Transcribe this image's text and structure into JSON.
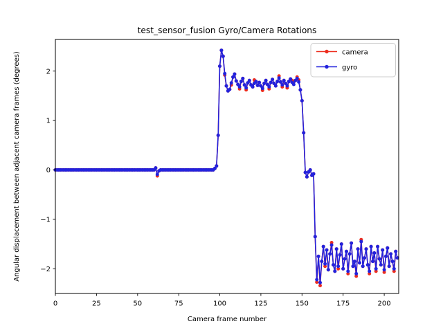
{
  "window": {
    "background_color": "#ffffff"
  },
  "chart_data": {
    "type": "line",
    "title": "test_sensor_fusion Gyro/Camera Rotations",
    "xlabel": "Camera frame number",
    "ylabel": "Angular displacement between adjacent camera frames (degrees)",
    "xlim": [
      0,
      208.8
    ],
    "ylim": [
      -2.5,
      2.64
    ],
    "xticks": [
      0,
      25,
      50,
      75,
      100,
      125,
      150,
      175,
      200
    ],
    "xtick_labels": [
      "0",
      "25",
      "50",
      "75",
      "100",
      "125",
      "150",
      "175",
      "200"
    ],
    "yticks": [
      -2,
      -1,
      0,
      1,
      2
    ],
    "ytick_labels": [
      "−2",
      "−1",
      "0",
      "1",
      "2"
    ],
    "grid": false,
    "legend": {
      "position": "upper right",
      "entries": [
        "camera",
        "gyro"
      ]
    },
    "x_start": 0,
    "x_step": 1,
    "series": [
      {
        "name": "camera",
        "color": "#ed2d1e",
        "marker": "circle",
        "values": [
          0,
          0,
          0,
          0,
          0,
          0,
          0,
          0,
          0,
          0,
          0,
          0,
          0,
          0,
          0,
          0,
          0,
          0,
          0,
          0,
          0,
          0,
          0,
          0,
          0,
          0,
          0,
          0,
          0,
          0,
          0,
          0,
          0,
          0,
          0,
          0,
          0,
          0,
          0,
          0,
          0,
          0,
          0,
          0,
          0,
          0,
          0,
          0,
          0,
          0,
          0,
          0,
          0,
          0,
          0,
          0,
          0,
          0,
          0,
          0,
          0,
          0.04,
          -0.12,
          -0.02,
          0,
          0,
          0,
          0,
          0,
          0,
          0,
          0,
          0,
          0,
          0,
          0,
          0,
          0,
          0,
          0,
          0,
          0,
          0,
          0,
          0,
          0,
          0,
          0,
          0,
          0,
          0,
          0,
          0,
          0,
          0,
          0,
          0,
          0.03,
          0.08,
          0.7,
          2.1,
          2.42,
          2.3,
          1.92,
          1.7,
          1.6,
          1.63,
          1.72,
          1.88,
          1.94,
          1.8,
          1.73,
          1.64,
          1.79,
          1.85,
          1.72,
          1.62,
          1.76,
          1.81,
          1.72,
          1.68,
          1.82,
          1.79,
          1.71,
          1.77,
          1.7,
          1.61,
          1.75,
          1.81,
          1.73,
          1.64,
          1.77,
          1.83,
          1.75,
          1.7,
          1.79,
          1.9,
          1.78,
          1.68,
          1.81,
          1.75,
          1.66,
          1.79,
          1.84,
          1.81,
          1.78,
          1.81,
          1.88,
          1.82,
          1.62,
          1.4,
          0.75,
          -0.05,
          -0.14,
          -0.04,
          0,
          -0.11,
          -0.08,
          -1.35,
          -2.27,
          -1.75,
          -2.34,
          -1.85,
          -1.55,
          -1.95,
          -1.62,
          -2.02,
          -1.7,
          -1.47,
          -1.92,
          -2.05,
          -1.6,
          -2.0,
          -1.72,
          -1.5,
          -2.0,
          -1.8,
          -1.65,
          -2.1,
          -1.7,
          -1.48,
          -1.95,
          -1.85,
          -2.15,
          -1.6,
          -1.88,
          -1.41,
          -1.95,
          -1.78,
          -1.6,
          -1.92,
          -2.1,
          -1.55,
          -1.85,
          -1.68,
          -2.05,
          -1.55,
          -1.8,
          -1.92,
          -1.62,
          -2.07,
          -1.75,
          -1.58,
          -1.95,
          -1.7,
          -1.85,
          -2.05,
          -1.65,
          -1.78
        ]
      },
      {
        "name": "gyro",
        "color": "#2222dd",
        "marker": "circle",
        "values": [
          0,
          0,
          0,
          0,
          0,
          0,
          0,
          0,
          0,
          0,
          0,
          0,
          0,
          0,
          0,
          0,
          0,
          0,
          0,
          0,
          0,
          0,
          0,
          0,
          0,
          0,
          0,
          0,
          0,
          0,
          0,
          0,
          0,
          0,
          0,
          0,
          0,
          0,
          0,
          0,
          0,
          0,
          0,
          0,
          0,
          0,
          0,
          0,
          0,
          0,
          0,
          0,
          0,
          0,
          0,
          0,
          0,
          0,
          0,
          0,
          0,
          0.04,
          -0.09,
          -0.02,
          0,
          0,
          0,
          0,
          0,
          0,
          0,
          0,
          0,
          0,
          0,
          0,
          0,
          0,
          0,
          0,
          0,
          0,
          0,
          0,
          0,
          0,
          0,
          0,
          0,
          0,
          0,
          0,
          0,
          0,
          0,
          0,
          0,
          0.03,
          0.08,
          0.7,
          2.1,
          2.42,
          2.3,
          1.95,
          1.7,
          1.6,
          1.63,
          1.76,
          1.88,
          1.94,
          1.8,
          1.73,
          1.68,
          1.79,
          1.85,
          1.72,
          1.66,
          1.76,
          1.81,
          1.72,
          1.68,
          1.75,
          1.79,
          1.71,
          1.77,
          1.7,
          1.65,
          1.75,
          1.81,
          1.73,
          1.68,
          1.77,
          1.83,
          1.75,
          1.7,
          1.79,
          1.86,
          1.78,
          1.72,
          1.81,
          1.75,
          1.7,
          1.79,
          1.84,
          1.77,
          1.73,
          1.81,
          1.85,
          1.78,
          1.62,
          1.4,
          0.75,
          -0.05,
          -0.14,
          -0.04,
          0,
          -0.11,
          -0.08,
          -1.35,
          -2.22,
          -1.75,
          -2.28,
          -1.85,
          -1.55,
          -1.9,
          -1.62,
          -2.02,
          -1.7,
          -1.52,
          -1.92,
          -2.05,
          -1.6,
          -1.95,
          -1.72,
          -1.5,
          -2.0,
          -1.8,
          -1.65,
          -2.05,
          -1.7,
          -1.48,
          -1.95,
          -1.85,
          -2.1,
          -1.6,
          -1.88,
          -1.45,
          -1.95,
          -1.78,
          -1.6,
          -1.92,
          -2.05,
          -1.55,
          -1.85,
          -1.68,
          -2.0,
          -1.55,
          -1.8,
          -1.92,
          -1.62,
          -2.02,
          -1.75,
          -1.58,
          -1.95,
          -1.7,
          -1.85,
          -2.0,
          -1.65,
          -1.78
        ]
      }
    ]
  }
}
